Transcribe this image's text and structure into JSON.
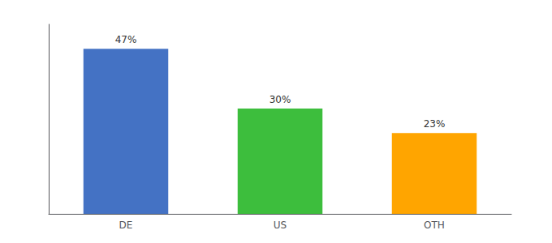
{
  "chart_data": {
    "type": "bar",
    "categories": [
      "DE",
      "US",
      "OTH"
    ],
    "values": [
      47,
      30,
      23
    ],
    "value_labels": [
      "47%",
      "30%",
      "23%"
    ],
    "colors": [
      "#4472C4",
      "#3DBE3D",
      "#FFA500"
    ],
    "ylim": [
      0,
      54
    ],
    "grid": false,
    "data_labels": true,
    "tick_labels": "x"
  }
}
